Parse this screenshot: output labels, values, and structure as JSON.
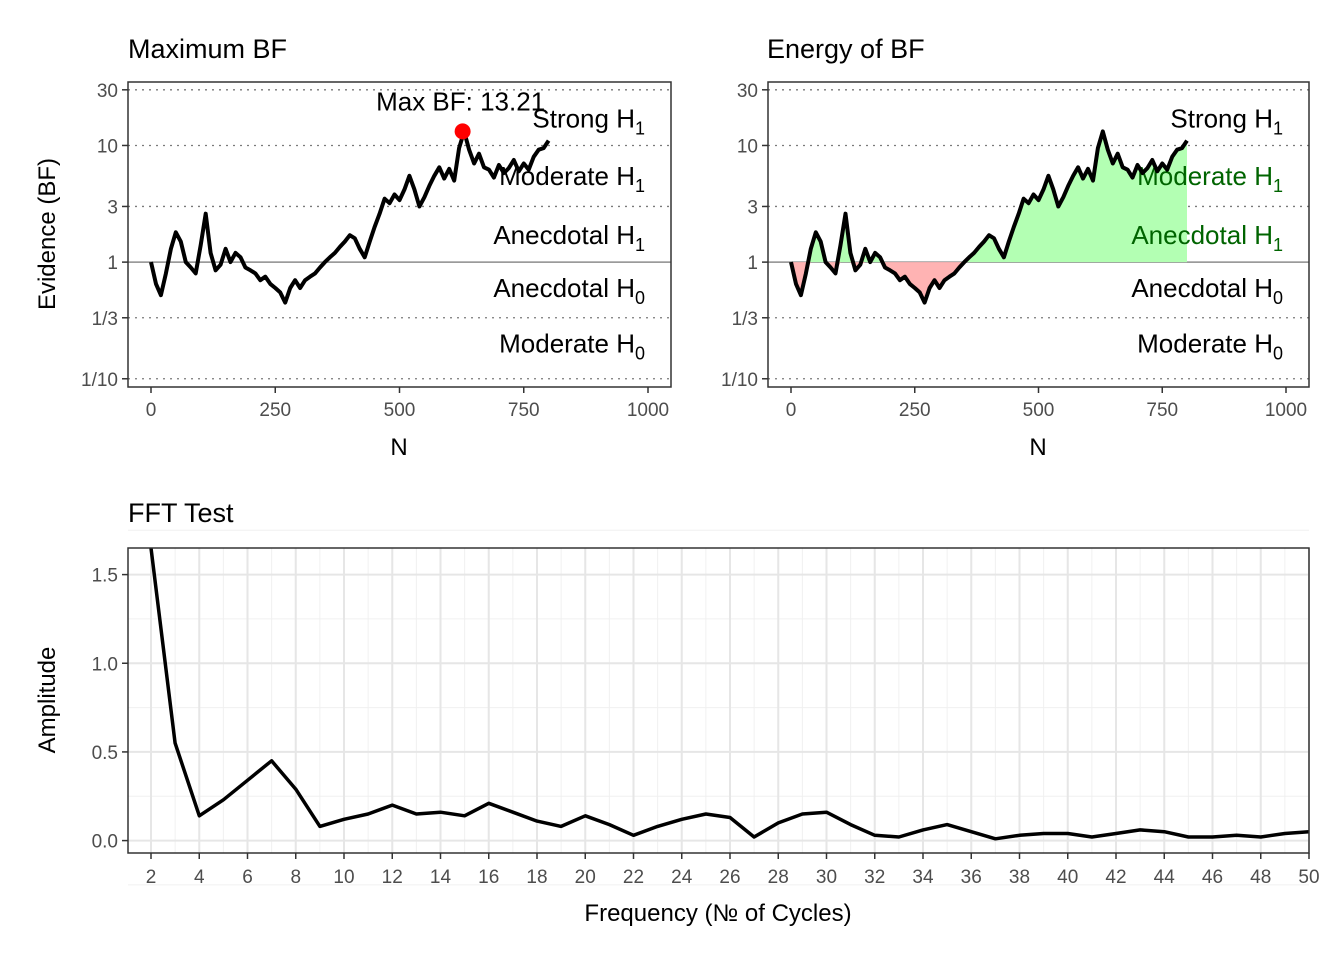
{
  "chart_data": [
    {
      "type": "line",
      "title": "Maximum BF",
      "xlabel": "N",
      "ylabel": "Evidence (BF)",
      "xlim": [
        0,
        1000
      ],
      "ylim": [
        0.085,
        35
      ],
      "y_scale": "log",
      "x_ticks": [
        "0",
        "250",
        "500",
        "750",
        "1000"
      ],
      "x_tick_values": [
        0,
        250,
        500,
        750,
        1000
      ],
      "y_ticks": [
        "30",
        "10",
        "3",
        "1",
        "1/3",
        "1/10"
      ],
      "y_tick_values": [
        30,
        10,
        3,
        1,
        0.3333,
        0.1
      ],
      "grid": "dotted at evidence thresholds, solid at 1",
      "evidence_labels": [
        "Strong H1",
        "Moderate H1",
        "Anecdotal H1",
        "Anecdotal H0",
        "Moderate H0"
      ],
      "evidence_label_values": [
        17,
        5.5,
        1.7,
        0.6,
        0.2
      ],
      "series": [
        {
          "x": [
            0,
            10,
            20,
            30,
            40,
            50,
            60,
            70,
            80,
            90,
            100,
            110,
            120,
            130,
            140,
            150,
            160,
            170,
            180,
            190,
            200,
            210,
            220,
            230,
            240,
            250,
            260,
            270,
            280,
            290,
            300,
            310,
            320,
            330,
            340,
            350,
            360,
            370,
            380,
            390,
            400,
            410,
            420,
            430,
            440,
            450,
            460,
            470,
            480,
            490,
            500,
            510,
            520,
            530,
            540,
            550,
            560,
            570,
            580,
            590,
            600,
            610,
            620,
            630,
            640,
            650,
            660,
            670,
            680,
            690,
            700,
            710,
            720,
            730,
            740,
            750,
            760,
            770,
            780,
            790,
            800
          ],
          "y": [
            1.0,
            0.65,
            0.52,
            0.8,
            1.3,
            1.8,
            1.5,
            1.0,
            0.9,
            0.8,
            1.4,
            2.6,
            1.2,
            0.85,
            0.95,
            1.3,
            1.0,
            1.2,
            1.1,
            0.9,
            0.85,
            0.8,
            0.7,
            0.75,
            0.65,
            0.6,
            0.55,
            0.45,
            0.6,
            0.7,
            0.6,
            0.7,
            0.75,
            0.8,
            0.9,
            1.0,
            1.1,
            1.2,
            1.35,
            1.5,
            1.7,
            1.6,
            1.3,
            1.1,
            1.5,
            2.0,
            2.6,
            3.5,
            3.2,
            3.8,
            3.4,
            4.2,
            5.5,
            4.2,
            3.0,
            3.6,
            4.5,
            5.5,
            6.5,
            5.2,
            6.3,
            5.0,
            9.5,
            13.21,
            9.2,
            7.0,
            8.5,
            6.5,
            6.2,
            5.3,
            6.8,
            5.8,
            6.4,
            7.5,
            6.0,
            7.0,
            6.2,
            8.0,
            9.2,
            9.5,
            11.0
          ]
        }
      ],
      "annotation": {
        "label": "Max BF: 13.21",
        "x": 627,
        "y": 13.21,
        "color": "#ff0000"
      }
    },
    {
      "type": "area",
      "title": "Energy of BF",
      "xlabel": "N",
      "xlim": [
        0,
        1000
      ],
      "ylim": [
        0.085,
        35
      ],
      "y_scale": "log",
      "x_ticks": [
        "0",
        "250",
        "500",
        "750",
        "1000"
      ],
      "x_tick_values": [
        0,
        250,
        500,
        750,
        1000
      ],
      "y_ticks": [
        "30",
        "10",
        "3",
        "1",
        "1/3",
        "1/10"
      ],
      "y_tick_values": [
        30,
        10,
        3,
        1,
        0.3333,
        0.1
      ],
      "grid": "dotted at evidence thresholds, solid at 1",
      "evidence_labels": [
        "Strong H1",
        "Moderate H1",
        "Anecdotal H1",
        "Anecdotal H0",
        "Moderate H0"
      ],
      "evidence_label_values": [
        17,
        5.5,
        1.7,
        0.6,
        0.2
      ],
      "fill_above_color": "#b3ffb3",
      "fill_below_color": "#ffb3b3",
      "baseline": 1,
      "series": [
        {
          "x": [
            0,
            10,
            20,
            30,
            40,
            50,
            60,
            70,
            80,
            90,
            100,
            110,
            120,
            130,
            140,
            150,
            160,
            170,
            180,
            190,
            200,
            210,
            220,
            230,
            240,
            250,
            260,
            270,
            280,
            290,
            300,
            310,
            320,
            330,
            340,
            350,
            360,
            370,
            380,
            390,
            400,
            410,
            420,
            430,
            440,
            450,
            460,
            470,
            480,
            490,
            500,
            510,
            520,
            530,
            540,
            550,
            560,
            570,
            580,
            590,
            600,
            610,
            620,
            630,
            640,
            650,
            660,
            670,
            680,
            690,
            700,
            710,
            720,
            730,
            740,
            750,
            760,
            770,
            780,
            790,
            800
          ],
          "y": [
            1.0,
            0.65,
            0.52,
            0.8,
            1.3,
            1.8,
            1.5,
            1.0,
            0.9,
            0.8,
            1.4,
            2.6,
            1.2,
            0.85,
            0.95,
            1.3,
            1.0,
            1.2,
            1.1,
            0.9,
            0.85,
            0.8,
            0.7,
            0.75,
            0.65,
            0.6,
            0.55,
            0.45,
            0.6,
            0.7,
            0.6,
            0.7,
            0.75,
            0.8,
            0.9,
            1.0,
            1.1,
            1.2,
            1.35,
            1.5,
            1.7,
            1.6,
            1.3,
            1.1,
            1.5,
            2.0,
            2.6,
            3.5,
            3.2,
            3.8,
            3.4,
            4.2,
            5.5,
            4.2,
            3.0,
            3.6,
            4.5,
            5.5,
            6.5,
            5.2,
            6.3,
            5.0,
            9.5,
            13.21,
            9.2,
            7.0,
            8.5,
            6.5,
            6.2,
            5.3,
            6.8,
            5.8,
            6.4,
            7.5,
            6.0,
            7.0,
            6.2,
            8.0,
            9.2,
            9.5,
            11.0
          ]
        }
      ]
    },
    {
      "type": "line",
      "title": "FFT Test",
      "xlabel": "Frequency (№ of Cycles)",
      "ylabel": "Amplitude",
      "xlim": [
        2,
        50
      ],
      "ylim": [
        -0.07,
        1.65
      ],
      "x_ticks": [
        "2",
        "4",
        "6",
        "8",
        "10",
        "12",
        "14",
        "16",
        "18",
        "20",
        "22",
        "24",
        "26",
        "28",
        "30",
        "32",
        "34",
        "36",
        "38",
        "40",
        "42",
        "44",
        "46",
        "48",
        "50"
      ],
      "x_tick_values": [
        2,
        4,
        6,
        8,
        10,
        12,
        14,
        16,
        18,
        20,
        22,
        24,
        26,
        28,
        30,
        32,
        34,
        36,
        38,
        40,
        42,
        44,
        46,
        48,
        50
      ],
      "y_ticks": [
        "0.0",
        "0.5",
        "1.0",
        "1.5"
      ],
      "y_tick_values": [
        0,
        0.5,
        1.0,
        1.5
      ],
      "grid": true,
      "series": [
        {
          "x": [
            2,
            3,
            4,
            5,
            6,
            7,
            8,
            9,
            10,
            11,
            12,
            13,
            14,
            15,
            16,
            17,
            18,
            19,
            20,
            21,
            22,
            23,
            24,
            25,
            26,
            27,
            28,
            29,
            30,
            31,
            32,
            33,
            34,
            35,
            36,
            37,
            38,
            39,
            40,
            41,
            42,
            43,
            44,
            45,
            46,
            47,
            48,
            49,
            50
          ],
          "y": [
            1.65,
            0.55,
            0.14,
            0.23,
            0.34,
            0.45,
            0.29,
            0.08,
            0.12,
            0.15,
            0.2,
            0.15,
            0.16,
            0.14,
            0.21,
            0.16,
            0.11,
            0.08,
            0.14,
            0.09,
            0.03,
            0.08,
            0.12,
            0.15,
            0.13,
            0.02,
            0.1,
            0.15,
            0.16,
            0.09,
            0.03,
            0.02,
            0.06,
            0.09,
            0.05,
            0.01,
            0.03,
            0.04,
            0.04,
            0.02,
            0.04,
            0.06,
            0.05,
            0.02,
            0.02,
            0.03,
            0.02,
            0.04,
            0.05
          ]
        }
      ]
    }
  ]
}
